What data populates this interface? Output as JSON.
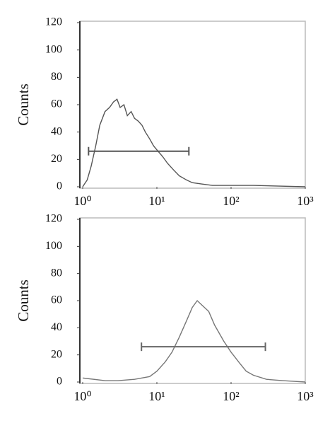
{
  "chart_data": [
    {
      "type": "line",
      "xscale": "log",
      "ylabel": "Counts",
      "x": [
        1,
        1.15,
        1.3,
        1.5,
        1.7,
        2.0,
        2.3,
        2.6,
        2.9,
        3.2,
        3.6,
        4.0,
        4.5,
        5,
        5.6,
        6.3,
        7,
        8,
        9,
        10,
        12,
        14,
        17,
        20,
        25,
        30,
        40,
        56,
        100,
        200,
        1000
      ],
      "series": [
        {
          "color": "#555555",
          "values": [
            0,
            5,
            15,
            30,
            45,
            55,
            58,
            62,
            64,
            58,
            60,
            52,
            55,
            50,
            48,
            45,
            40,
            35,
            30,
            27,
            22,
            17,
            12,
            8,
            5,
            3,
            2,
            1,
            1,
            1,
            0
          ]
        }
      ],
      "marker": {
        "x": [
          1.2,
          27
        ],
        "y": 26,
        "color": "#555555"
      },
      "xlim": [
        1,
        1000
      ],
      "ylim": [
        0,
        120
      ],
      "xticks": [
        {
          "value": 1,
          "label": "10⁰"
        },
        {
          "value": 10,
          "label": "10¹"
        },
        {
          "value": 100,
          "label": "10²"
        },
        {
          "value": 1000,
          "label": "10³"
        }
      ],
      "yticks": [
        0,
        20,
        40,
        60,
        80,
        100,
        120
      ]
    },
    {
      "type": "line",
      "xscale": "log",
      "ylabel": "Counts",
      "x": [
        1,
        2,
        3,
        5,
        8,
        10,
        13,
        16,
        20,
        25,
        30,
        35,
        40,
        50,
        60,
        80,
        100,
        130,
        160,
        200,
        300,
        500,
        1000
      ],
      "series": [
        {
          "color": "#777777",
          "values": [
            3,
            1,
            1,
            2,
            4,
            8,
            15,
            22,
            33,
            45,
            55,
            60,
            57,
            52,
            42,
            30,
            22,
            14,
            8,
            5,
            2,
            1,
            0
          ]
        }
      ],
      "marker": {
        "x": [
          6.2,
          290
        ],
        "y": 26,
        "color": "#666666"
      },
      "xlim": [
        1,
        1000
      ],
      "ylim": [
        0,
        120
      ],
      "xticks": [
        {
          "value": 1,
          "label": "10⁰"
        },
        {
          "value": 10,
          "label": "10¹"
        },
        {
          "value": 100,
          "label": "10²"
        },
        {
          "value": 1000,
          "label": "10³"
        }
      ],
      "yticks": [
        0,
        20,
        40,
        60,
        80,
        100,
        120
      ]
    }
  ]
}
